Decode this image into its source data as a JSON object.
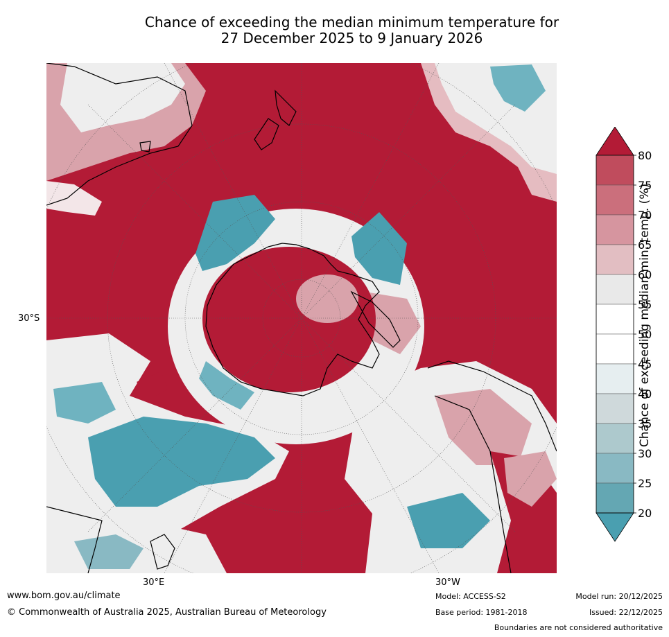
{
  "title_line1": "Chance of exceeding the median minimum temperature for",
  "title_line2": "27 December 2025 to 9 January 2026",
  "map": {
    "lat_label": "30°S",
    "lon_labels": [
      "30°E",
      "30°W"
    ],
    "colors": {
      "background": "#b31b36",
      "ocean_high": "#b31b36",
      "mid_red": "#c66a78",
      "pale_red": "#e5bcc1",
      "neutral": "#eeeeee",
      "teal_low": "#4a9fb0",
      "pale_teal": "#cddde1"
    }
  },
  "colorbar": {
    "label": "Chance of exceeding median min. temp. (%)",
    "ticks": [
      "80",
      "75",
      "70",
      "65",
      "60",
      "55",
      "50",
      "45",
      "40",
      "35",
      "30",
      "25",
      "20"
    ],
    "colors": [
      "#b72a42",
      "#c04c5d",
      "#cb6f7c",
      "#d6959f",
      "#e2bec2",
      "#e9e9e9",
      "#ffffff",
      "#ffffff",
      "#e6eef0",
      "#cfd9db",
      "#adc9cd",
      "#89b9c3",
      "#64a7b3",
      "#4a9fb0"
    ],
    "top_arrow_color": "#b31b36",
    "bottom_arrow_color": "#4a9fb0"
  },
  "footer": {
    "website": "www.bom.gov.au/climate",
    "copyright": "© Commonwealth of Australia 2025, Australian Bureau of Meteorology",
    "model": "Model: ACCESS-S2",
    "base_period": "Base period: 1981-2018",
    "model_run": "Model run: 20/12/2025",
    "issued": "Issued: 22/12/2025",
    "disclaimer": "Boundaries are not considered authoritative"
  }
}
